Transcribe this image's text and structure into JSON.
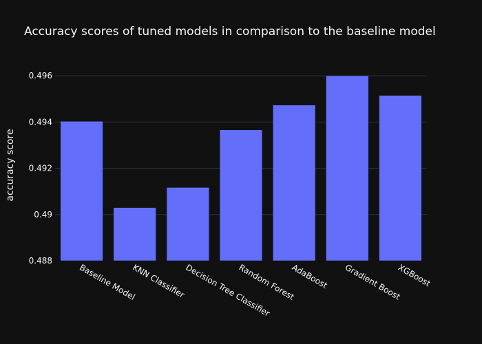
{
  "chart_data": {
    "type": "bar",
    "title": "Accuracy scores of tuned models in comparison to the baseline model",
    "xlabel": "",
    "ylabel": "accuracy score",
    "categories": [
      "Baseline Model",
      "KNN Classifier",
      "Decision Tree Classifier",
      "Random Forest",
      "AdaBoost",
      "Gradient Boost",
      "XGBoost"
    ],
    "values": [
      0.49403,
      0.4903,
      0.49117,
      0.49366,
      0.49473,
      0.496,
      0.49515
    ],
    "ylim": [
      0.488,
      0.4963
    ],
    "yticks": [
      0.488,
      0.49,
      0.492,
      0.494,
      0.496
    ],
    "ytick_labels": [
      "0.488",
      "0.49",
      "0.492",
      "0.494",
      "0.496"
    ],
    "grid": true,
    "bar_color": "#636efa",
    "background_color": "#111111",
    "grid_color": "#283442",
    "text_color": "#f2f5fa"
  }
}
